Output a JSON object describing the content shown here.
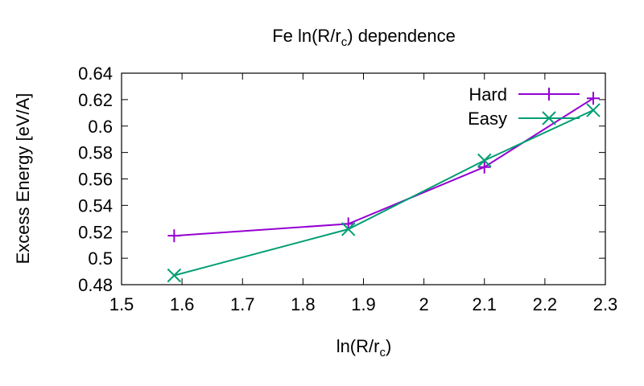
{
  "chart_data": {
    "type": "line",
    "title": {
      "main": "Fe ln(R/r",
      "sub": "c",
      "tail": ") dependence"
    },
    "xlabel": {
      "main": "ln(R/r",
      "sub": "c",
      "tail": ")"
    },
    "ylabel": "Excess Energy [eV/A]",
    "xlim": [
      1.5,
      2.3
    ],
    "ylim": [
      0.48,
      0.64
    ],
    "xticks": [
      1.5,
      1.6,
      1.7,
      1.8,
      1.9,
      2,
      2.1,
      2.2,
      2.3
    ],
    "xtick_labels": [
      "1.5",
      "1.6",
      "1.7",
      "1.8",
      "1.9",
      "2",
      "2.1",
      "2.2",
      "2.3"
    ],
    "yticks": [
      0.48,
      0.5,
      0.52,
      0.54,
      0.56,
      0.58,
      0.6,
      0.62,
      0.64
    ],
    "ytick_labels": [
      "0.48",
      "0.5",
      "0.52",
      "0.54",
      "0.56",
      "0.58",
      "0.6",
      "0.62",
      "0.64"
    ],
    "grid": false,
    "legend_position": "top-right",
    "series": [
      {
        "name": "Hard",
        "color": "#9400d3",
        "marker": "plus",
        "x": [
          1.587,
          1.875,
          2.1,
          2.28
        ],
        "y": [
          0.517,
          0.526,
          0.569,
          0.621
        ]
      },
      {
        "name": "Easy",
        "color": "#009e73",
        "marker": "cross",
        "x": [
          1.587,
          1.875,
          2.1,
          2.28
        ],
        "y": [
          0.487,
          0.522,
          0.574,
          0.612
        ]
      }
    ]
  }
}
